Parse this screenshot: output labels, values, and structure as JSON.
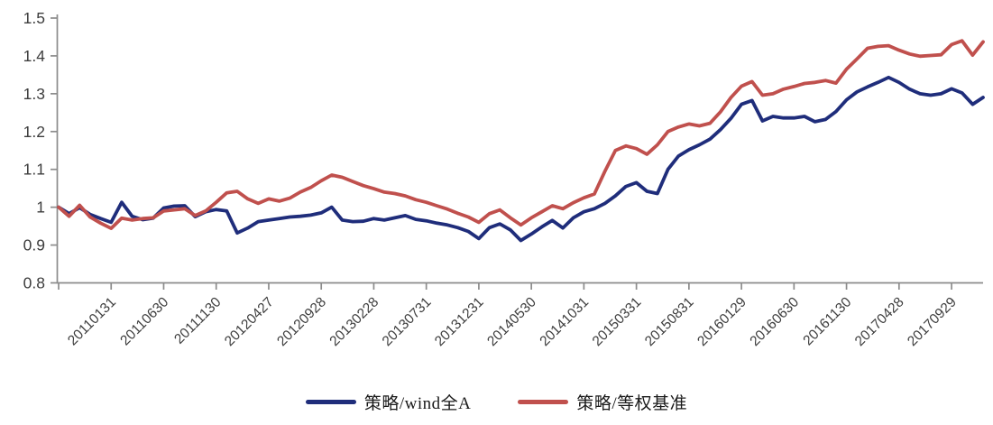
{
  "chart_data": {
    "type": "line",
    "title": "",
    "xlabel": "",
    "ylabel": "",
    "grid": false,
    "legend_position": "bottom",
    "background": "#ffffff",
    "axis_color": "#8c8c8c",
    "tick_label_color": "#3d3d3d",
    "x_axis": {
      "total_points": 89,
      "label_interval": 5,
      "first_labeled_point_index": 5,
      "tick_labels": [
        "20110131",
        "20110630",
        "20111130",
        "20120427",
        "20120928",
        "20130228",
        "20130731",
        "20131231",
        "20140530",
        "20141031",
        "20150331",
        "20150831",
        "20160129",
        "20160630",
        "20161130",
        "20170428",
        "20170929"
      ]
    },
    "y_axis": {
      "min": 0.8,
      "max": 1.5,
      "tick_step": 0.1,
      "tick_labels": [
        "1.5",
        "1.4",
        "1.3",
        "1.2",
        "1.1",
        "1",
        "0.9",
        "0.8"
      ]
    },
    "series": [
      {
        "name": "策略/wind全A",
        "color": "#1F2D7B",
        "values": [
          1.0,
          0.983,
          0.999,
          0.981,
          0.97,
          0.96,
          1.013,
          0.976,
          0.967,
          0.971,
          0.998,
          1.003,
          1.004,
          0.975,
          0.988,
          0.994,
          0.99,
          0.932,
          0.945,
          0.962,
          0.966,
          0.97,
          0.974,
          0.976,
          0.979,
          0.985,
          1.0,
          0.966,
          0.962,
          0.963,
          0.97,
          0.966,
          0.972,
          0.978,
          0.968,
          0.964,
          0.958,
          0.953,
          0.946,
          0.936,
          0.917,
          0.946,
          0.956,
          0.94,
          0.912,
          0.929,
          0.948,
          0.965,
          0.945,
          0.972,
          0.988,
          0.996,
          1.01,
          1.03,
          1.055,
          1.065,
          1.042,
          1.036,
          1.1,
          1.135,
          1.152,
          1.165,
          1.18,
          1.205,
          1.235,
          1.272,
          1.282,
          1.228,
          1.24,
          1.236,
          1.236,
          1.24,
          1.226,
          1.232,
          1.253,
          1.284,
          1.305,
          1.318,
          1.33,
          1.343,
          1.33,
          1.312,
          1.3,
          1.296,
          1.3,
          1.313,
          1.302,
          1.272,
          1.29
        ]
      },
      {
        "name": "策略/等权基准",
        "color": "#C0504D",
        "values": [
          1.0,
          0.976,
          1.005,
          0.974,
          0.958,
          0.944,
          0.971,
          0.966,
          0.97,
          0.972,
          0.99,
          0.993,
          0.996,
          0.978,
          0.99,
          1.013,
          1.038,
          1.042,
          1.022,
          1.01,
          1.022,
          1.016,
          1.024,
          1.04,
          1.052,
          1.07,
          1.085,
          1.079,
          1.068,
          1.057,
          1.049,
          1.04,
          1.036,
          1.03,
          1.02,
          1.013,
          1.004,
          0.995,
          0.984,
          0.974,
          0.96,
          0.983,
          0.993,
          0.972,
          0.953,
          0.972,
          0.988,
          1.004,
          0.996,
          1.012,
          1.025,
          1.035,
          1.095,
          1.15,
          1.162,
          1.155,
          1.14,
          1.165,
          1.2,
          1.212,
          1.22,
          1.215,
          1.222,
          1.252,
          1.29,
          1.32,
          1.332,
          1.296,
          1.3,
          1.312,
          1.319,
          1.327,
          1.33,
          1.335,
          1.328,
          1.365,
          1.392,
          1.42,
          1.425,
          1.427,
          1.415,
          1.405,
          1.399,
          1.401,
          1.403,
          1.43,
          1.44,
          1.402,
          1.437
        ]
      }
    ]
  }
}
